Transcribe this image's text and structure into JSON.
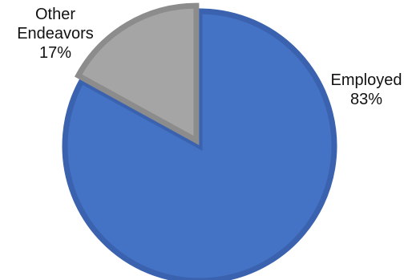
{
  "chart_data": {
    "type": "pie",
    "slices": [
      {
        "name": "Employed",
        "value": 83,
        "label": "83%",
        "color": "#4472C4",
        "edge_color": "#3A62AE"
      },
      {
        "name": "Other Endeavors",
        "name_lines": [
          "Other",
          "Endeavors"
        ],
        "value": 17,
        "label": "17%",
        "color": "#A5A5A5",
        "edge_color": "#8C8C8C"
      }
    ],
    "legend": "none",
    "start_angle": "12 o'clock",
    "direction": "clockwise"
  }
}
